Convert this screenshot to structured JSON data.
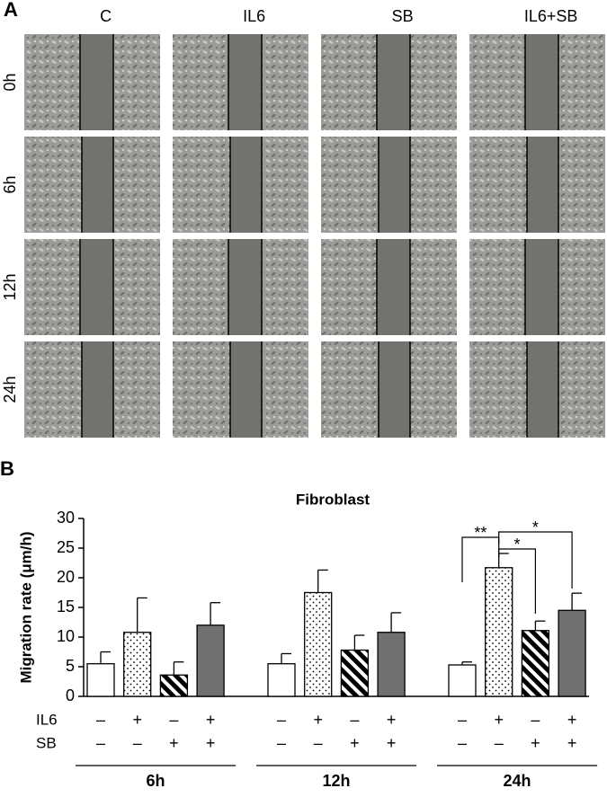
{
  "panel_a": {
    "label": "A",
    "columns": [
      "C",
      "IL6",
      "SB",
      "IL6+SB"
    ],
    "rows": [
      "0h",
      "6h",
      "12h",
      "24h"
    ]
  },
  "chart_data": {
    "type": "bar",
    "panel_label": "B",
    "title": "Fibroblast",
    "y_label": "Migration rate (μm/h)",
    "categories": [
      "6h",
      "12h",
      "24h"
    ],
    "series": [
      {
        "color": "#ffffff",
        "pattern": "solid",
        "values": [
          5.5,
          5.5,
          5.3
        ],
        "errors": [
          2.0,
          1.7,
          0.5
        ]
      },
      {
        "color": "#ffffff",
        "pattern": "dots",
        "values": [
          10.8,
          17.5,
          21.7
        ],
        "errors": [
          5.8,
          3.8,
          2.4
        ]
      },
      {
        "color": "#000000",
        "pattern": "stripes",
        "values": [
          3.6,
          7.8,
          11.1
        ],
        "errors": [
          2.2,
          2.5,
          1.6
        ]
      },
      {
        "color": "#707070",
        "pattern": "solid",
        "values": [
          12.0,
          10.8,
          14.5
        ],
        "errors": [
          3.8,
          3.3,
          2.9
        ]
      }
    ],
    "conditions": [
      {
        "label": "IL6",
        "marks": [
          "–",
          "+",
          "–",
          "+"
        ]
      },
      {
        "label": "SB",
        "marks": [
          "–",
          "–",
          "+",
          "+"
        ]
      }
    ],
    "annotations": [
      "**",
      "*",
      "*"
    ],
    "ylim": [
      0,
      30
    ],
    "yticks": [
      0,
      5,
      10,
      15,
      20,
      25,
      30
    ]
  }
}
